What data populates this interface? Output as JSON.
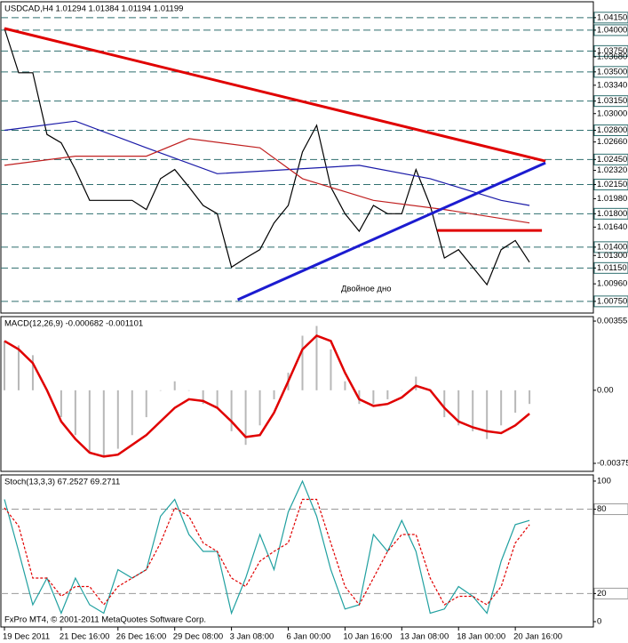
{
  "chart_data": [
    {
      "type": "line",
      "title": "USDCAD,H4  1.01294 1.01384 1.01194 1.01199",
      "xlim": [
        -1,
        166
      ],
      "ylim": [
        1.0061,
        1.0434
      ],
      "yticks": [
        {
          "value": 1.0415,
          "label": "1.04150"
        },
        {
          "value": 1.04,
          "label": "1.04000"
        },
        {
          "value": 1.0375,
          "label": "1.03750"
        },
        {
          "value": 1.0368,
          "label": "1.03680"
        },
        {
          "value": 1.035,
          "label": "1.03500"
        },
        {
          "value": 1.0334,
          "label": "1.03340"
        },
        {
          "value": 1.0315,
          "label": "1.03150"
        },
        {
          "value": 1.03,
          "label": "1.03000"
        },
        {
          "value": 1.028,
          "label": "1.02800"
        },
        {
          "value": 1.0266,
          "label": "1.02660"
        },
        {
          "value": 1.0245,
          "label": "1.02450"
        },
        {
          "value": 1.0232,
          "label": "1.02320"
        },
        {
          "value": 1.0215,
          "label": "1.02150"
        },
        {
          "value": 1.0198,
          "label": "1.01980"
        },
        {
          "value": 1.018,
          "label": "1.01800"
        },
        {
          "value": 1.0164,
          "label": "1.01640"
        },
        {
          "value": 1.014,
          "label": "1.01400"
        },
        {
          "value": 1.013,
          "label": "1.01300"
        },
        {
          "value": 1.0115,
          "label": "1.01150"
        },
        {
          "value": 1.0096,
          "label": "1.00960"
        },
        {
          "value": 1.0075,
          "label": "1.00750"
        }
      ],
      "levels": [
        1.0415,
        1.04,
        1.0375,
        1.035,
        1.0315,
        1.028,
        1.0245,
        1.0215,
        1.018,
        1.014,
        1.0115,
        1.0075
      ],
      "level_color": "#2f6f6f",
      "x": [
        0,
        4,
        8,
        12,
        16,
        20,
        24,
        28,
        32,
        36,
        40,
        44,
        48,
        52,
        56,
        60,
        64,
        68,
        72,
        76,
        80,
        84,
        88,
        92,
        96,
        100,
        104,
        108,
        112,
        116,
        120,
        124,
        128,
        132,
        136,
        140,
        144,
        148
      ],
      "series": [
        {
          "color": "#000000",
          "values": [
            1.0402,
            1.0349,
            1.0349,
            1.0275,
            1.0265,
            1.0233,
            1.0196,
            1.0196,
            1.0196,
            1.0196,
            1.0185,
            1.0222,
            1.0233,
            1.0212,
            1.019,
            1.018,
            1.0116,
            1.0127,
            1.0137,
            1.0169,
            1.019,
            1.0254,
            1.0286,
            1.0212,
            1.018,
            1.0159,
            1.019,
            1.018,
            1.018,
            1.0233,
            1.019,
            1.0127,
            1.0137,
            1.0116,
            1.0095,
            1.0137,
            1.0148,
            1.0122
          ]
        },
        {
          "color": "#1a1aa8",
          "x": [
            0,
            20,
            40,
            60,
            80,
            100,
            120,
            140,
            148
          ],
          "values": [
            1.028,
            1.0291,
            1.0259,
            1.0228,
            1.0233,
            1.0238,
            1.0222,
            1.0196,
            1.019
          ]
        },
        {
          "color": "#c02020",
          "x": [
            0,
            20,
            40,
            52,
            72,
            84,
            104,
            124,
            148
          ],
          "values": [
            1.0238,
            1.0249,
            1.0249,
            1.027,
            1.0259,
            1.0222,
            1.0196,
            1.0185,
            1.0169
          ]
        }
      ],
      "trendlines": [
        {
          "color": "#e00000",
          "x": [
            0,
            152.5
          ],
          "values": [
            1.0402,
            1.0243
          ]
        },
        {
          "color": "#1c1cd0",
          "x": [
            65.75,
            152.5
          ],
          "values": [
            1.0077,
            1.0241
          ]
        },
        {
          "color": "#e00000",
          "x": [
            122,
            151.5
          ],
          "values": [
            1.016,
            1.016
          ]
        }
      ],
      "annotation": {
        "text": "Двойное дно",
        "color": "#1c1cd0"
      }
    },
    {
      "type": "bar",
      "title": "MACD(12,26,9) -0.000682 -0.001101",
      "xlim": [
        -1,
        166
      ],
      "ylim": [
        -0.00416,
        0.00378
      ],
      "yticks": [
        0.00355,
        {
          "value": 0,
          "label": "0.00"
        },
        -0.00375
      ],
      "x": [
        0,
        4,
        8,
        12,
        16,
        20,
        24,
        28,
        32,
        36,
        40,
        44,
        48,
        52,
        56,
        60,
        64,
        68,
        72,
        76,
        80,
        84,
        88,
        92,
        96,
        100,
        104,
        108,
        112,
        116,
        120,
        124,
        128,
        132,
        136,
        140,
        144,
        148
      ],
      "series": [
        {
          "type": "bar",
          "color": "#b8b8b8",
          "values": [
            0.00253,
            0.0023,
            0.0018,
            0,
            -0.00138,
            -0.0023,
            -0.0032,
            -0.0034,
            -0.003,
            -0.0023,
            -0.00138,
            0,
            0.00046,
            0,
            -0.0007,
            -0.0009,
            -0.0021,
            -0.0028,
            -0.0018,
            -0.00046,
            0.0009,
            0.0028,
            0.0033,
            0.0021,
            0.00046,
            -0.0007,
            -0.0007,
            -0.00046,
            0,
            0.0007,
            0,
            -0.00138,
            -0.0018,
            -0.0021,
            -0.0025,
            -0.0018,
            -0.00115,
            -0.0007
          ]
        },
        {
          "type": "line",
          "color": "#e00000",
          "values": [
            0.00253,
            0.0021,
            0.0014,
            0,
            -0.0016,
            -0.0025,
            -0.0032,
            -0.0034,
            -0.0033,
            -0.0028,
            -0.0023,
            -0.0016,
            -0.0009,
            -0.00046,
            -0.00055,
            -0.0009,
            -0.0016,
            -0.0024,
            -0.0023,
            -0.00115,
            0.00046,
            0.0021,
            0.0028,
            0.00253,
            0.0009,
            -0.00046,
            -0.0008,
            -0.0007,
            -0.00037,
            0.00023,
            0,
            -0.0009,
            -0.0016,
            -0.0019,
            -0.0021,
            -0.0022,
            -0.0018,
            -0.0012
          ]
        }
      ]
    },
    {
      "type": "line",
      "title": "Stoch(13,3,3) 67.2527 69.2711",
      "xlim": [
        -1,
        166
      ],
      "ylim": [
        -3.8,
        104.4
      ],
      "yticks": [
        100,
        80,
        20,
        0
      ],
      "levels": [
        80,
        20
      ],
      "level_color": "#9a9a9a",
      "x": [
        0,
        4,
        8,
        12,
        16,
        20,
        24,
        28,
        32,
        36,
        40,
        44,
        48,
        52,
        56,
        60,
        64,
        68,
        72,
        76,
        80,
        84,
        88,
        92,
        96,
        100,
        104,
        108,
        112,
        116,
        120,
        124,
        128,
        132,
        136,
        140,
        144,
        148
      ],
      "series": [
        {
          "type": "line",
          "color": "#20a0a0",
          "values": [
            87,
            50,
            12,
            31,
            6,
            31,
            12,
            6,
            37,
            31,
            37,
            75,
            87,
            62,
            50,
            50,
            6,
            31,
            62,
            37,
            78,
            100,
            75,
            37,
            9,
            12,
            62,
            50,
            72,
            50,
            6,
            9,
            25,
            18,
            6,
            43,
            69,
            72
          ]
        },
        {
          "type": "line",
          "color": "#e00000",
          "dash": true,
          "values": [
            81,
            68,
            31,
            31,
            18,
            25,
            25,
            12,
            25,
            31,
            37,
            56,
            81,
            75,
            56,
            50,
            31,
            25,
            43,
            50,
            56,
            87,
            87,
            56,
            25,
            12,
            31,
            50,
            62,
            62,
            31,
            12,
            18,
            18,
            12,
            25,
            56,
            69
          ]
        }
      ],
      "xticks": [
        {
          "value": 0,
          "label": "19 Dec 2011"
        },
        {
          "value": 16,
          "label": "21 Dec 16:00"
        },
        {
          "value": 32,
          "label": "26 Dec 16:00"
        },
        {
          "value": 48,
          "label": "29 Dec 08:00"
        },
        {
          "value": 64,
          "label": "3 Jan 08:00"
        },
        {
          "value": 80,
          "label": "6 Jan 00:00"
        },
        {
          "value": 96,
          "label": "10 Jan 16:00"
        },
        {
          "value": 112,
          "label": "13 Jan 08:00"
        },
        {
          "value": 128,
          "label": "18 Jan 00:00"
        },
        {
          "value": 144,
          "label": "20 Jan 16:00"
        }
      ],
      "copyright": "FxPro MT4, © 2001-2011 MetaQuotes Software Corp."
    }
  ]
}
